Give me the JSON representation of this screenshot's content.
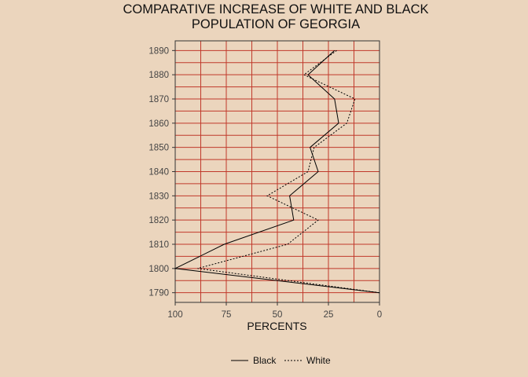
{
  "chart_data": {
    "type": "line",
    "title_line1": "COMPARATIVE INCREASE OF WHITE AND BLACK",
    "title_line2": "POPULATION OF GEORGIA",
    "xlabel": "PERCENTS",
    "ylabel": "",
    "xlim": [
      100,
      0
    ],
    "x_reversed": true,
    "x_ticks": [
      100,
      75,
      50,
      25,
      0
    ],
    "y_ticks": [
      1790,
      1800,
      1810,
      1820,
      1830,
      1840,
      1850,
      1860,
      1870,
      1880,
      1890
    ],
    "grid": true,
    "legend_position": "bottom",
    "colors": {
      "background": "#ebd5bd",
      "grid": "#c0392b",
      "line": "#000000"
    },
    "series": [
      {
        "name": "Black",
        "style": "solid",
        "points": [
          [
            0,
            1790
          ],
          [
            100,
            1800
          ],
          [
            76,
            1810
          ],
          [
            42,
            1820
          ],
          [
            44,
            1830
          ],
          [
            30,
            1840
          ],
          [
            34,
            1850
          ],
          [
            20,
            1860
          ],
          [
            22,
            1870
          ],
          [
            35,
            1880
          ],
          [
            22,
            1890
          ]
        ]
      },
      {
        "name": "White",
        "style": "dotted",
        "points": [
          [
            0,
            1790
          ],
          [
            89,
            1800
          ],
          [
            45,
            1810
          ],
          [
            30,
            1820
          ],
          [
            55,
            1830
          ],
          [
            35,
            1840
          ],
          [
            32,
            1850
          ],
          [
            16,
            1860
          ],
          [
            12,
            1870
          ],
          [
            37,
            1880
          ],
          [
            21,
            1890
          ]
        ]
      }
    ]
  }
}
